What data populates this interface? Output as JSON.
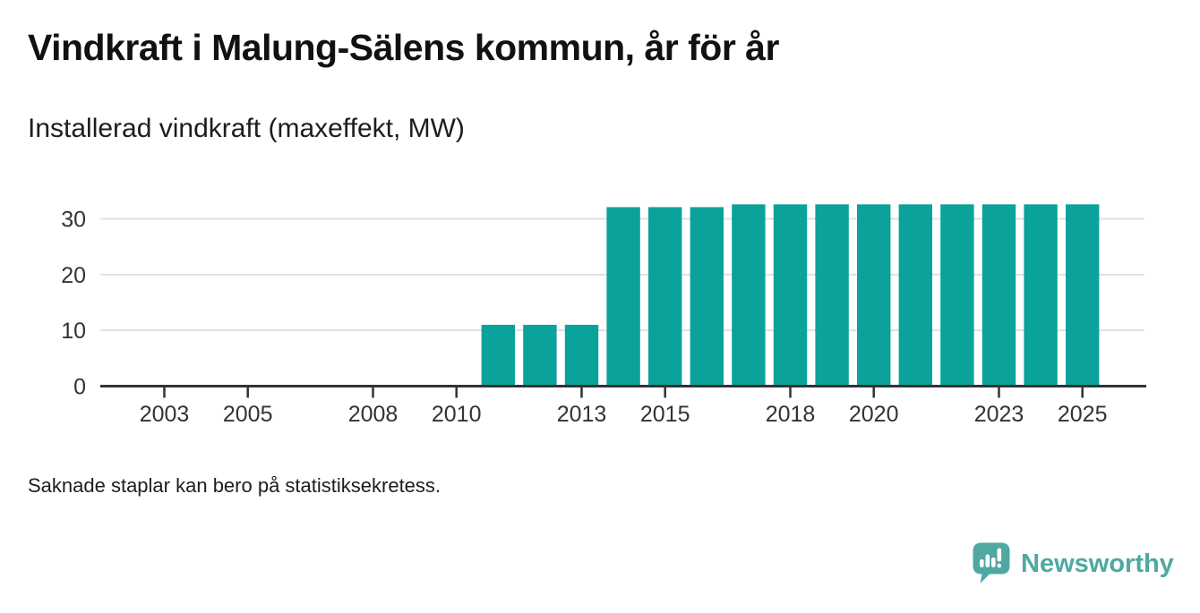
{
  "header": {
    "title": "Vindkraft i Malung-Sälens kommun, år för år",
    "subtitle": "Installerad vindkraft (maxeffekt, MW)"
  },
  "footnote": "Saknade staplar kan bero på statistiksekretess.",
  "branding": {
    "wordmark": "Newsworthy",
    "logo_icon": "newsworthy-speech-bubble-bar-chart-icon",
    "logo_color": "#4FA8A2"
  },
  "colors": {
    "bar": "#0BA29B",
    "grid": "#E0E0E0",
    "axis": "#333333",
    "tick_label": "#333333"
  },
  "chart_data": {
    "type": "bar",
    "title": "Vindkraft i Malung-Sälens kommun, år för år",
    "subtitle_ylabel": "Installerad vindkraft (maxeffekt, MW)",
    "unit": "MW",
    "x": [
      2002,
      2003,
      2004,
      2005,
      2006,
      2007,
      2008,
      2009,
      2010,
      2011,
      2012,
      2013,
      2014,
      2015,
      2016,
      2017,
      2018,
      2019,
      2020,
      2021,
      2022,
      2023,
      2024,
      2025
    ],
    "values": [
      null,
      null,
      null,
      null,
      null,
      null,
      null,
      null,
      null,
      11,
      11,
      11,
      32.1,
      32.1,
      32.1,
      32.6,
      32.6,
      32.6,
      32.6,
      32.6,
      32.6,
      32.6,
      32.6,
      32.6
    ],
    "x_ticks": [
      2003,
      2005,
      2008,
      2010,
      2013,
      2015,
      2018,
      2020,
      2023,
      2025
    ],
    "y_ticks": [
      0,
      10,
      20,
      30
    ],
    "ylim": [
      0,
      34.7
    ],
    "grid": "horizontal",
    "legend": "none",
    "missing_note": "Saknade staplar kan bero på statistiksekretess."
  }
}
